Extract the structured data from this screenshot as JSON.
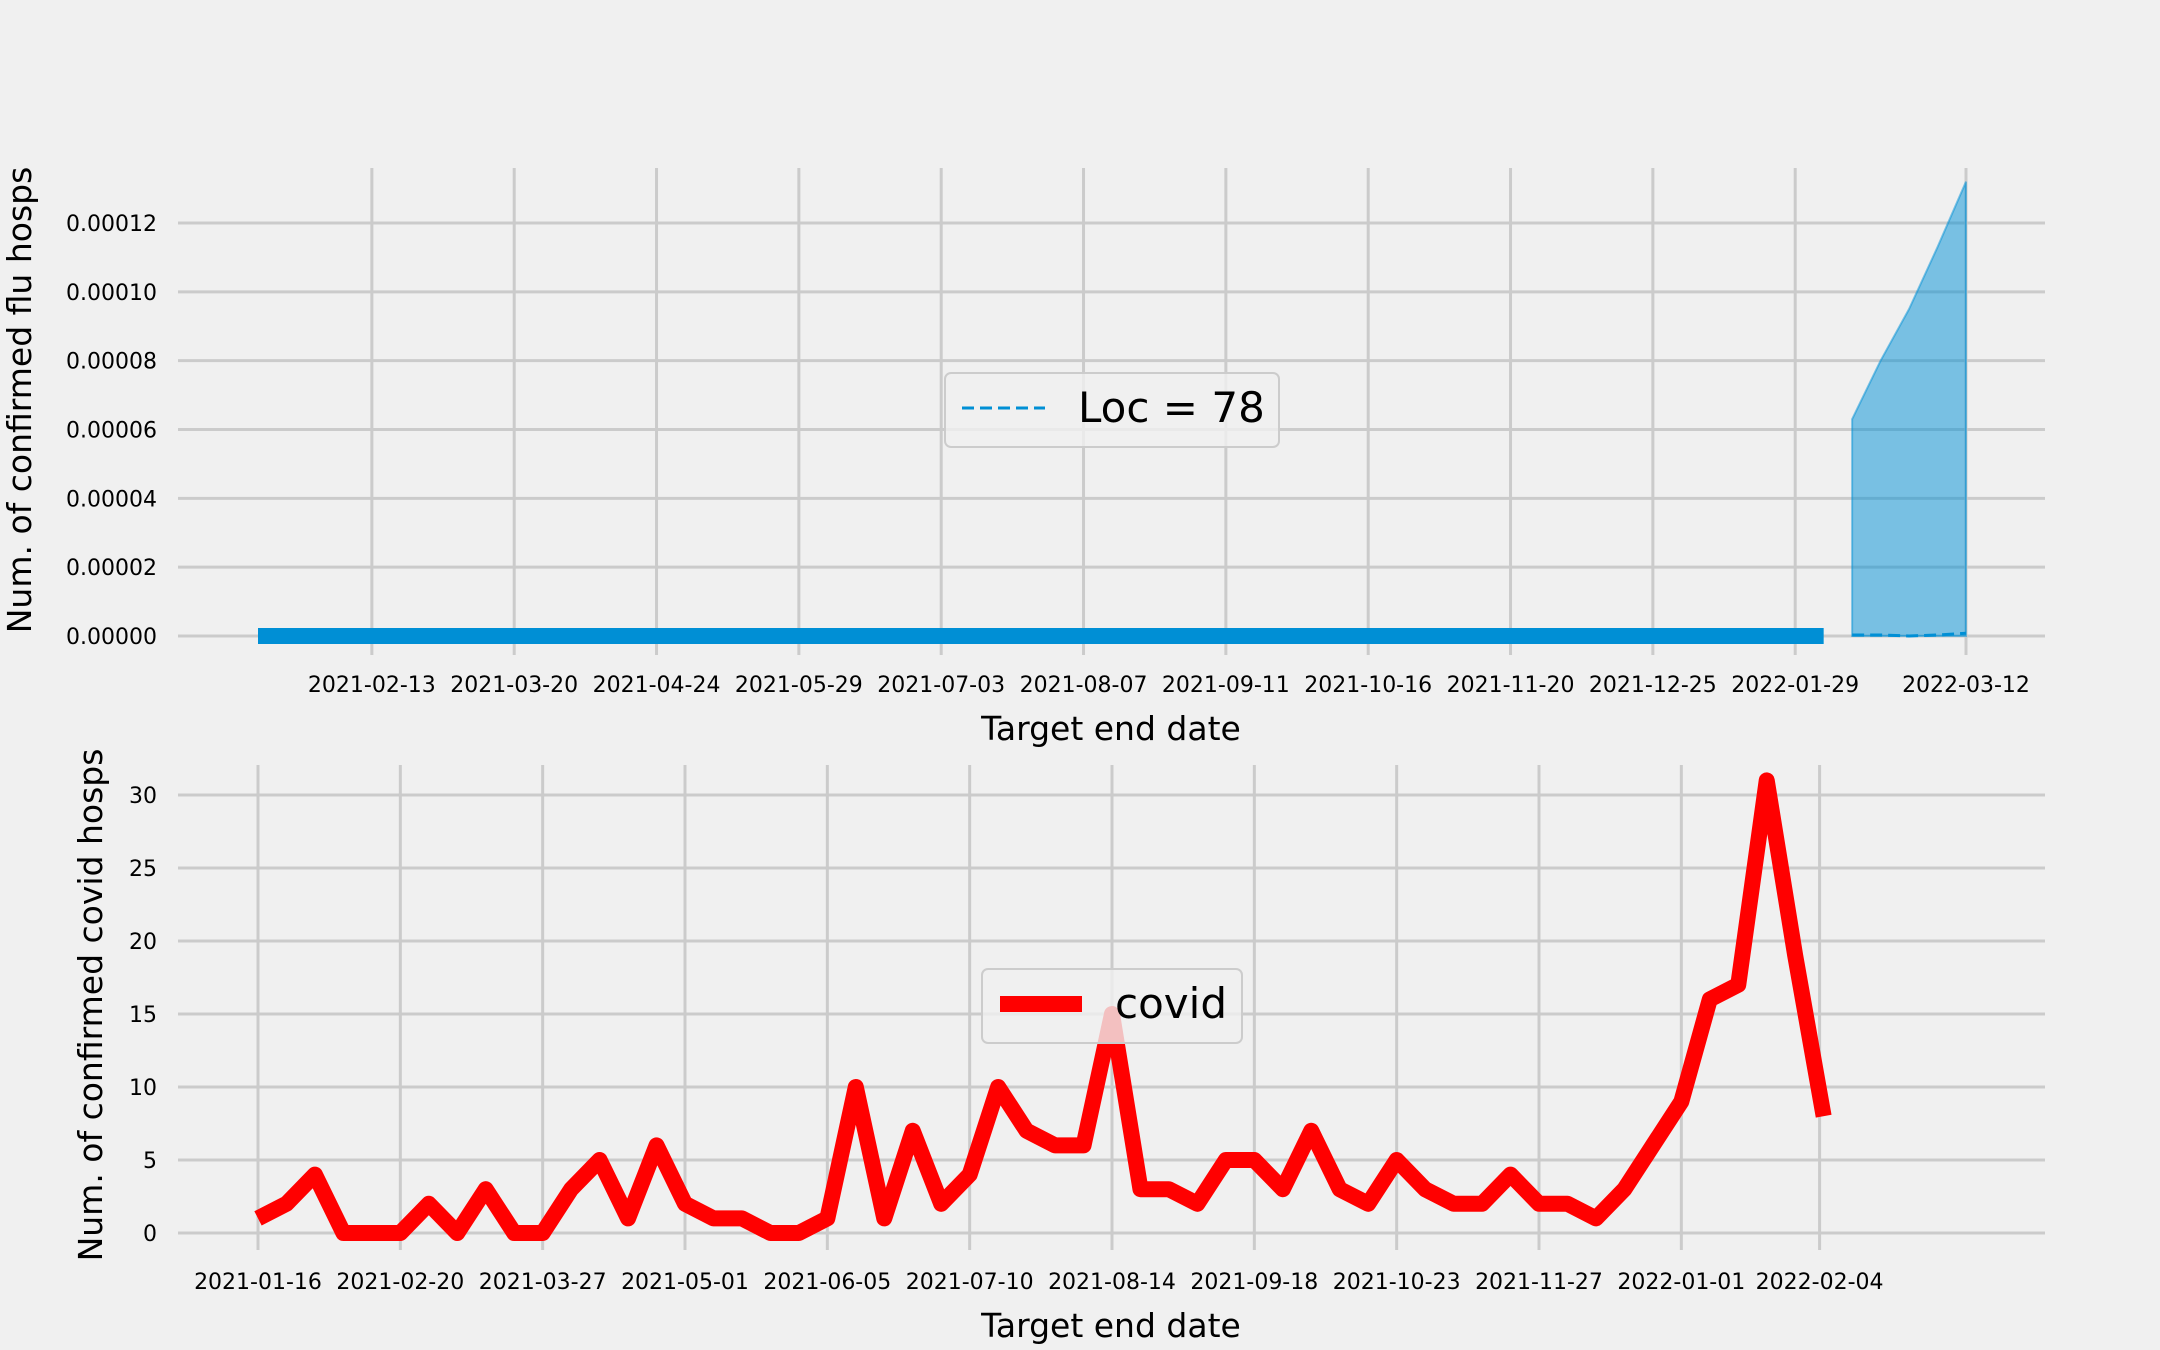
{
  "chart_data": [
    {
      "type": "line",
      "ylabel": "Num. of confirmed flu hosps",
      "xlabel": "Target end date",
      "x_tick_labels": [
        "2021-02-13",
        "2021-03-20",
        "2021-04-24",
        "2021-05-29",
        "2021-07-03",
        "2021-08-07",
        "2021-09-11",
        "2021-10-16",
        "2021-11-20",
        "2021-12-25",
        "2022-01-29",
        "2022-03-12"
      ],
      "y_tick_labels": [
        "0.00000",
        "0.00002",
        "0.00004",
        "0.00006",
        "0.00008",
        "0.00010",
        "0.00012"
      ],
      "ylim": [
        -5.5e-06,
        0.000135
      ],
      "legend": {
        "labels": [
          "Loc = 78"
        ],
        "placement": "center"
      },
      "series": [
        {
          "style": "solid-thick",
          "color": "#008fd5",
          "points": [
            [
              "2021-01-16",
              0
            ],
            [
              "2022-02-05",
              0
            ]
          ]
        },
        {
          "name": "Loc = 78",
          "style": "dashed",
          "color": "#008fd5",
          "points": [
            [
              "2022-02-12",
              3e-07
            ],
            [
              "2022-02-19",
              3e-07
            ],
            [
              "2022-02-26",
              0
            ],
            [
              "2022-03-05",
              3e-07
            ],
            [
              "2022-03-12",
              8e-07
            ]
          ]
        }
      ],
      "band": {
        "color": "#008fd5",
        "x": [
          "2022-02-12",
          "2022-02-19",
          "2022-02-26",
          "2022-03-05",
          "2022-03-12"
        ],
        "lower": [
          0,
          0,
          0,
          0,
          0
        ],
        "upper": [
          6.3e-05,
          8e-05,
          9.5e-05,
          0.000113,
          0.000132
        ]
      }
    },
    {
      "type": "line",
      "ylabel": "Num. of confirmed covid hosps",
      "xlabel": "Target end date",
      "x_tick_labels": [
        "2021-01-16",
        "2021-02-20",
        "2021-03-27",
        "2021-05-01",
        "2021-06-05",
        "2021-07-10",
        "2021-08-14",
        "2021-09-18",
        "2021-10-23",
        "2021-11-27",
        "2022-01-01",
        "2022-02-04"
      ],
      "y_tick_labels": [
        "0",
        "5",
        "10",
        "15",
        "20",
        "25",
        "30"
      ],
      "ylim": [
        -1.6,
        32.5
      ],
      "legend": {
        "labels": [
          "covid"
        ],
        "placement": "center"
      },
      "series": [
        {
          "name": "covid",
          "color": "#ff0000",
          "start": "2021-01-16",
          "step_days": 7,
          "values": [
            1,
            2,
            4,
            0,
            0,
            0,
            2,
            0,
            3,
            0,
            0,
            3,
            5,
            1,
            6,
            2,
            1,
            1,
            0,
            0,
            1,
            10,
            1,
            7,
            2,
            4,
            10,
            7,
            6,
            6,
            15,
            3,
            3,
            2,
            5,
            5,
            3,
            7,
            3,
            2,
            5,
            3,
            2,
            2,
            4,
            2,
            2,
            1,
            3,
            6,
            9,
            16,
            17,
            31,
            19,
            8
          ]
        }
      ]
    }
  ]
}
